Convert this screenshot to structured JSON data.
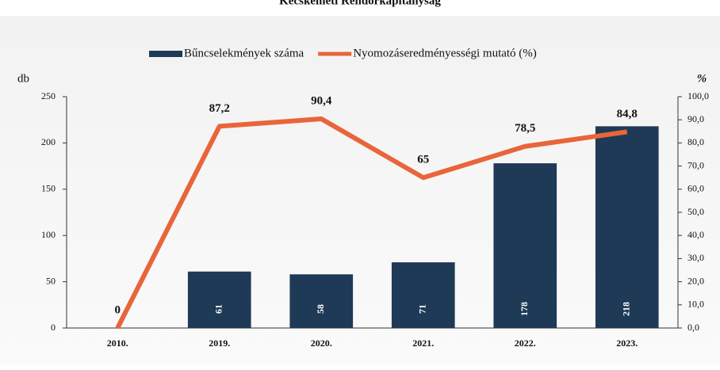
{
  "chart_data": {
    "type": "bar-line",
    "title": "Kecskeméti Rendőrkapitányság",
    "ylabel": "db",
    "y2label": "%",
    "categories": [
      "2010.",
      "2019.",
      "2020.",
      "2021.",
      "2022.",
      "2023."
    ],
    "series": [
      {
        "name": "Bűncselekmények száma",
        "type": "bar",
        "color": "#1f3a56",
        "values": [
          null,
          61,
          58,
          71,
          178,
          218
        ]
      },
      {
        "name": "Nyomozáseredményességi mutató (%)",
        "type": "line",
        "axis": "y2",
        "color": "#e8653b",
        "values": [
          0,
          87.2,
          90.4,
          65,
          78.5,
          84.8
        ],
        "value_labels": [
          "0",
          "87,2",
          "90,4",
          "65",
          "78,5",
          "84,8"
        ]
      }
    ],
    "ylim": [
      0,
      250
    ],
    "yticks": [
      0,
      50,
      100,
      150,
      200,
      250
    ],
    "y2lim": [
      0,
      100
    ],
    "y2ticks": [
      {
        "value": 0,
        "label": "0,0"
      },
      {
        "value": 10,
        "label": "10,0"
      },
      {
        "value": 20,
        "label": "20,0"
      },
      {
        "value": 30,
        "label": "30,0"
      },
      {
        "value": 40,
        "label": "40,0"
      },
      {
        "value": 50,
        "label": "50,0"
      },
      {
        "value": 60,
        "label": "60,0"
      },
      {
        "value": 70,
        "label": "70,0"
      },
      {
        "value": 80,
        "label": "80,0"
      },
      {
        "value": 90,
        "label": "90,0"
      },
      {
        "value": 100,
        "label": "100,0"
      }
    ]
  }
}
